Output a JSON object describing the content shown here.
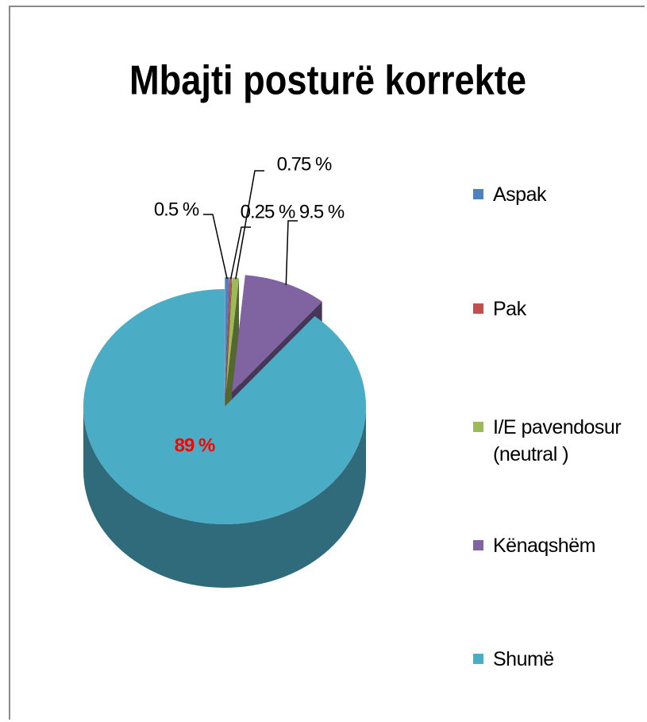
{
  "chart_data": {
    "type": "pie",
    "style": "3d",
    "title": "Mbajti posturë korrekte",
    "categories": [
      "Aspak",
      "Pak",
      "I/E pavendosur (neutral )",
      "Kënaqshëm",
      "Shumë"
    ],
    "values": [
      0.5,
      0.25,
      0.75,
      9.5,
      89
    ],
    "value_labels": [
      "0.5 %",
      "0.25 %",
      "0.75 %",
      "9.5 %",
      "89 %"
    ],
    "colors": [
      "#4f81bd",
      "#c0504d",
      "#9bbb59",
      "#8064a2",
      "#4bacc6"
    ],
    "legend": "right"
  }
}
